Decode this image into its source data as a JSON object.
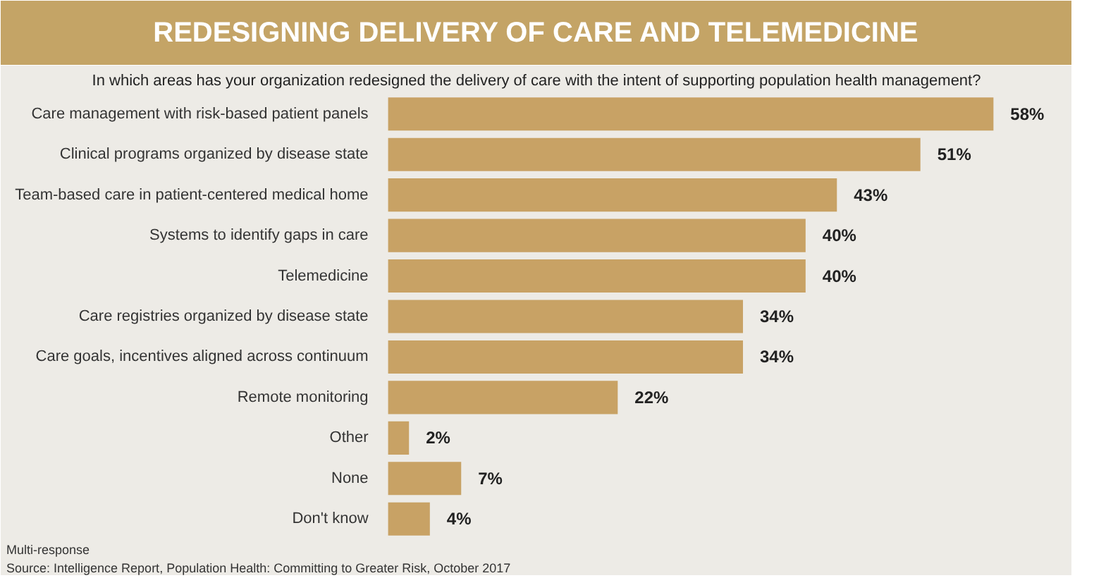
{
  "chart_data": {
    "type": "bar",
    "orientation": "horizontal",
    "title": "REDESIGNING DELIVERY OF CARE AND TELEMEDICINE",
    "subtitle": "In which areas has your organization redesigned the delivery of care with the intent of supporting population health management?",
    "categories": [
      "Care management with risk-based patient panels",
      "Clinical programs organized by disease state",
      "Team-based care in patient-centered medical home",
      "Systems to identify gaps in care",
      "Telemedicine",
      "Care registries organized by disease state",
      "Care goals, incentives aligned across continuum",
      "Remote monitoring",
      "Other",
      "None",
      "Don't know"
    ],
    "values": [
      58,
      51,
      43,
      40,
      40,
      34,
      34,
      22,
      2,
      7,
      4
    ],
    "value_labels": [
      "58%",
      "51%",
      "43%",
      "40%",
      "40%",
      "34%",
      "34%",
      "22%",
      "2%",
      "7%",
      "4%"
    ],
    "color": "#c8a265",
    "grid": false,
    "annotations": [
      "Multi-response",
      "Source: Intelligence Report, Population Health: Committing to Greater Risk, October 2017"
    ]
  }
}
